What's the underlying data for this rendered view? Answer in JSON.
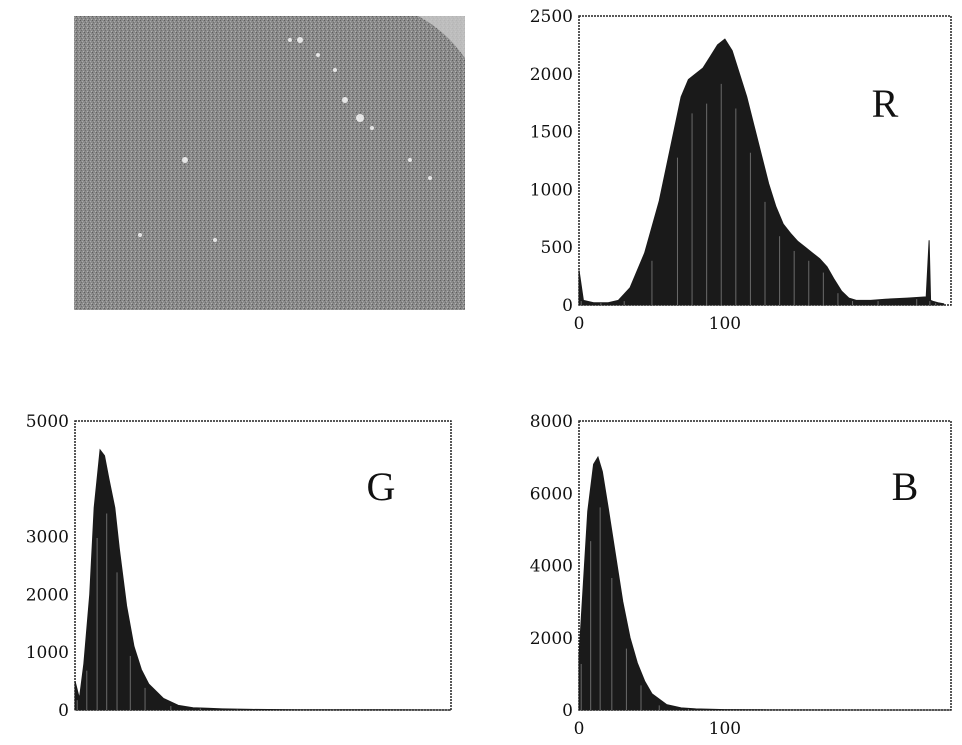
{
  "figure": {
    "image_panel": {
      "description_icon": "grayscale-photo"
    }
  },
  "chart_data": [
    {
      "type": "area",
      "channel_label": "R",
      "xlim": [
        0,
        255
      ],
      "ylim": [
        0,
        2500
      ],
      "xticks": [
        0,
        100
      ],
      "xtick_labels": [
        "0",
        "100"
      ],
      "yticks": [
        0,
        500,
        1000,
        1500,
        2000,
        2500
      ],
      "ytick_labels": [
        "0",
        "500",
        "1000",
        "1500",
        "2000",
        "2500"
      ],
      "color": "#1a1a1a",
      "x": [
        0,
        3,
        10,
        20,
        27,
        35,
        45,
        55,
        65,
        70,
        75,
        80,
        85,
        90,
        95,
        100,
        105,
        110,
        115,
        120,
        125,
        130,
        135,
        140,
        145,
        150,
        155,
        160,
        165,
        170,
        175,
        180,
        185,
        190,
        200,
        210,
        225,
        238,
        240,
        241,
        243,
        246,
        250
      ],
      "y": [
        300,
        40,
        20,
        20,
        40,
        150,
        450,
        900,
        1500,
        1800,
        1950,
        2000,
        2050,
        2150,
        2250,
        2300,
        2200,
        2000,
        1800,
        1550,
        1300,
        1050,
        850,
        700,
        620,
        550,
        500,
        450,
        400,
        330,
        220,
        120,
        60,
        40,
        40,
        50,
        60,
        70,
        560,
        40,
        30,
        20,
        10
      ]
    },
    {
      "type": "area",
      "channel_label": "G",
      "xlim": [
        0,
        255
      ],
      "ylim": [
        0,
        5000
      ],
      "xticks": [],
      "xtick_labels": [],
      "yticks": [
        0,
        1000,
        2000,
        3000,
        5000
      ],
      "ytick_labels": [
        "0",
        "1000",
        "2000",
        "3000",
        "5000"
      ],
      "color": "#1a1a1a",
      "x": [
        0,
        3,
        6,
        10,
        13,
        17,
        20,
        23,
        27,
        30,
        35,
        40,
        45,
        50,
        60,
        70,
        80,
        90,
        100,
        120,
        150,
        200,
        255
      ],
      "y": [
        500,
        200,
        800,
        2000,
        3500,
        4500,
        4400,
        4000,
        3500,
        2800,
        1800,
        1100,
        700,
        450,
        200,
        80,
        40,
        30,
        20,
        10,
        5,
        5,
        0
      ]
    },
    {
      "type": "area",
      "channel_label": "B",
      "xlim": [
        0,
        255
      ],
      "ylim": [
        0,
        8000
      ],
      "xticks": [
        0,
        100
      ],
      "xtick_labels": [
        "0",
        "100"
      ],
      "yticks": [
        0,
        2000,
        4000,
        6000,
        8000
      ],
      "ytick_labels": [
        "0",
        "2000",
        "4000",
        "6000",
        "8000"
      ],
      "color": "#1a1a1a",
      "x": [
        0,
        3,
        6,
        10,
        13,
        16,
        20,
        25,
        30,
        35,
        40,
        45,
        50,
        60,
        70,
        80,
        100,
        130,
        255
      ],
      "y": [
        1500,
        3500,
        5500,
        6800,
        7000,
        6600,
        5600,
        4300,
        3000,
        2000,
        1300,
        800,
        450,
        150,
        60,
        30,
        10,
        5,
        0
      ]
    }
  ]
}
